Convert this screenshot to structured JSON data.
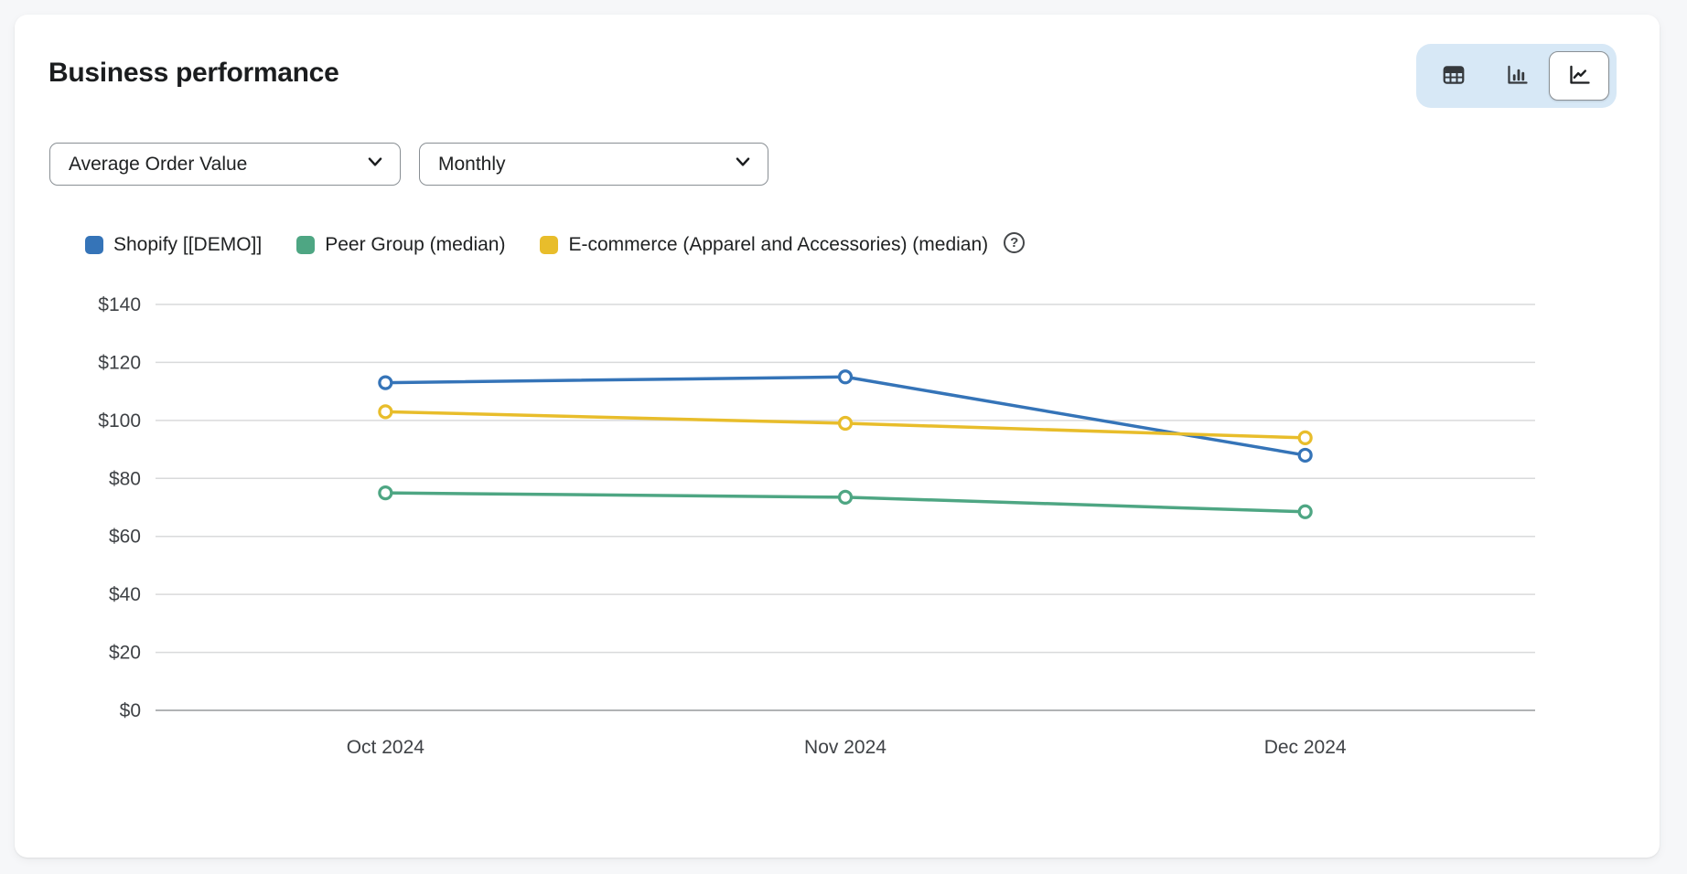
{
  "card": {
    "title": "Business performance"
  },
  "view_toggle": {
    "options": [
      {
        "id": "table",
        "icon": "table-icon",
        "selected": false
      },
      {
        "id": "bar-chart",
        "icon": "bar-chart-icon",
        "selected": false
      },
      {
        "id": "line-chart",
        "icon": "line-chart-icon",
        "selected": true
      }
    ]
  },
  "filters": {
    "metric_select": {
      "value": "Average Order Value"
    },
    "granularity_select": {
      "value": "Monthly"
    }
  },
  "legend": {
    "help_icon": "?"
  },
  "colors": {
    "shopify_blue": "#3574b8",
    "peer_green": "#4ea683",
    "ecommerce_yellow": "#e8bd2b",
    "gridline": "#d9dadb",
    "axis": "#b1b3b5",
    "tick_text": "#3f4246",
    "toggle_bg": "#d7e8f6"
  },
  "chart_data": {
    "type": "line",
    "title": "Business performance",
    "x": [
      "Oct 2024",
      "Nov 2024",
      "Dec 2024"
    ],
    "series": [
      {
        "name": "Shopify [[DEMO]]",
        "color": "#3574b8",
        "values": [
          113,
          115,
          88
        ]
      },
      {
        "name": "Peer Group (median)",
        "color": "#4ea683",
        "values": [
          75,
          73.5,
          68.5
        ]
      },
      {
        "name": "E-commerce (Apparel and Accessories) (median)",
        "color": "#e8bd2b",
        "values": [
          103,
          99,
          94
        ]
      }
    ],
    "ylim": [
      0,
      140
    ],
    "yticks": [
      0,
      20,
      40,
      60,
      80,
      100,
      120,
      140
    ],
    "ytick_prefix": "$",
    "grid": true,
    "legend_position": "top",
    "marker": "open-circle"
  }
}
